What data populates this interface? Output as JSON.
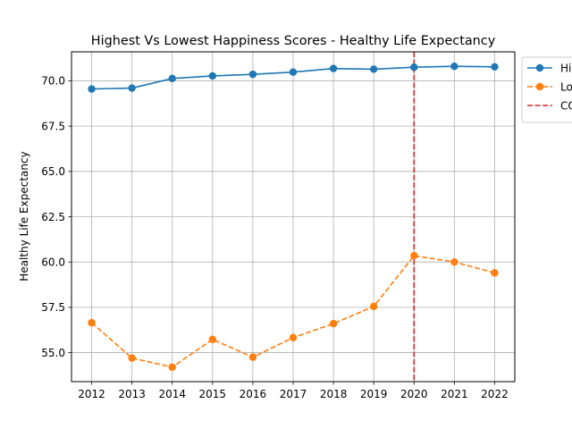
{
  "chart_data": {
    "type": "line",
    "title": "Highest Vs Lowest Happiness Scores - Healthy Life Expectancy",
    "xlabel": "",
    "ylabel": "Healthy Life Expectancy",
    "x": [
      2012,
      2013,
      2014,
      2015,
      2016,
      2017,
      2018,
      2019,
      2020,
      2021,
      2022
    ],
    "xtick_labels": [
      "2012",
      "2013",
      "2014",
      "2015",
      "2016",
      "2017",
      "2018",
      "2019",
      "2020",
      "2021",
      "2022"
    ],
    "ylim": [
      53.4,
      71.6
    ],
    "yticks": [
      55.0,
      57.5,
      60.0,
      62.5,
      65.0,
      67.5,
      70.0
    ],
    "ytick_labels": [
      "55.0",
      "57.5",
      "60.0",
      "62.5",
      "65.0",
      "67.5",
      "70.0"
    ],
    "grid": true,
    "legend_position": "upper-right-outside",
    "series": [
      {
        "name": "Hi",
        "color": "#1f77b4",
        "line_style": "solid",
        "marker": "circle",
        "values": [
          69.55,
          69.6,
          70.13,
          70.27,
          70.36,
          70.48,
          70.68,
          70.64,
          70.75,
          70.8,
          70.77
        ]
      },
      {
        "name": "Lo",
        "color": "#ff7f0e",
        "line_style": "dashed",
        "marker": "circle",
        "values": [
          56.65,
          54.7,
          54.2,
          55.73,
          54.75,
          55.83,
          56.6,
          57.55,
          60.35,
          60.0,
          59.4
        ]
      }
    ],
    "annotations": [
      {
        "type": "vline",
        "x": 2020,
        "label": "CO",
        "color": "#d62728",
        "line_style": "dashed"
      }
    ]
  }
}
